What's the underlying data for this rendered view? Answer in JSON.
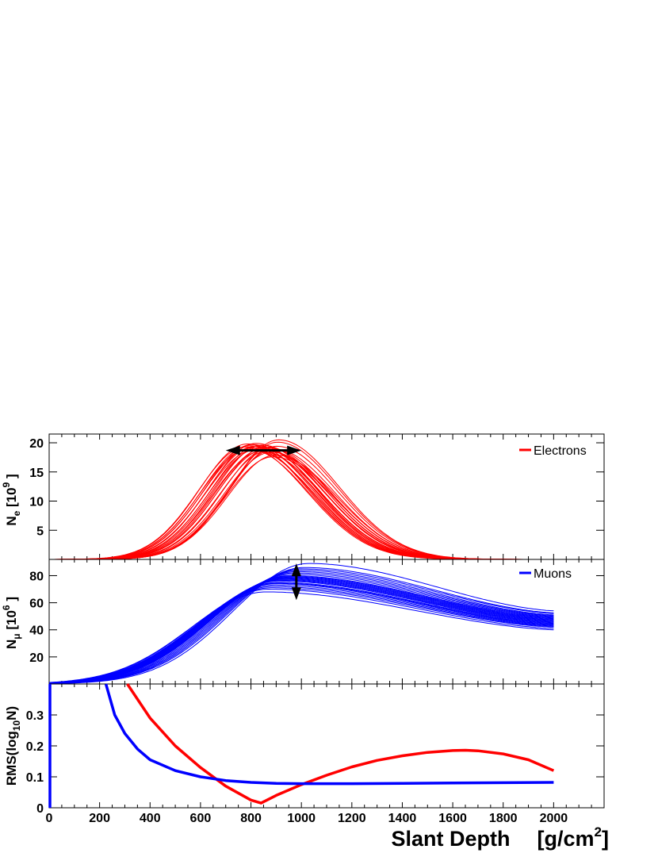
{
  "figure": {
    "xaxis": {
      "label": "Slant Depth",
      "unit_prefix": "[g/cm",
      "unit_sup": "2",
      "unit_suffix": "]",
      "range": [
        0,
        2200
      ],
      "ticks": [
        "0",
        "200",
        "400",
        "600",
        "800",
        "1000",
        "1200",
        "1400",
        "1600",
        "1800",
        "2000"
      ]
    }
  },
  "chart_data": [
    {
      "type": "line",
      "panel": "electrons",
      "ylabel": {
        "main": "N",
        "sub": "e",
        "unit": " [10",
        "sup": "9",
        "close": " ]"
      },
      "ylim": [
        0,
        21.5
      ],
      "yticks": [
        "5",
        "10",
        "15",
        "20"
      ],
      "legend": {
        "label": "Electrons",
        "color": "#ff0000",
        "position": "top-right"
      },
      "color": "#ff0000",
      "note": "shower family: about 26 red curves peaking between 780 and 910 g/cm2 at 17-20.5 x10^9",
      "series": [
        {
          "xmax": 780,
          "nmax": 19.3
        },
        {
          "xmax": 786,
          "nmax": 19.8
        },
        {
          "xmax": 790,
          "nmax": 18.9
        },
        {
          "xmax": 795,
          "nmax": 19.5
        },
        {
          "xmax": 800,
          "nmax": 19.1
        },
        {
          "xmax": 805,
          "nmax": 19.7
        },
        {
          "xmax": 810,
          "nmax": 18.7
        },
        {
          "xmax": 815,
          "nmax": 19.4
        },
        {
          "xmax": 820,
          "nmax": 19.9
        },
        {
          "xmax": 825,
          "nmax": 18.9
        },
        {
          "xmax": 830,
          "nmax": 19.5
        },
        {
          "xmax": 835,
          "nmax": 19.2
        },
        {
          "xmax": 840,
          "nmax": 18.5
        },
        {
          "xmax": 845,
          "nmax": 19.6
        },
        {
          "xmax": 850,
          "nmax": 19.0
        },
        {
          "xmax": 855,
          "nmax": 18.8
        },
        {
          "xmax": 860,
          "nmax": 19.3
        },
        {
          "xmax": 868,
          "nmax": 18.6
        },
        {
          "xmax": 875,
          "nmax": 19.1
        },
        {
          "xmax": 882,
          "nmax": 18.4
        },
        {
          "xmax": 888,
          "nmax": 17.6
        },
        {
          "xmax": 893,
          "nmax": 18.9
        },
        {
          "xmax": 898,
          "nmax": 17.9
        },
        {
          "xmax": 902,
          "nmax": 19.4
        },
        {
          "xmax": 906,
          "nmax": 20.1
        },
        {
          "xmax": 910,
          "nmax": 20.5
        }
      ],
      "arrow": {
        "x1": 700,
        "x2": 1000,
        "y": 18.7,
        "direction": "horizontal"
      }
    },
    {
      "type": "line",
      "panel": "muons",
      "ylabel": {
        "main": "N",
        "sub": "μ",
        "unit": " [10",
        "sup": "6",
        "close": " ]"
      },
      "ylim": [
        0,
        92
      ],
      "yticks": [
        "20",
        "40",
        "60",
        "80"
      ],
      "legend": {
        "label": "Muons",
        "color": "#0000ff",
        "position": "top-right"
      },
      "color": "#0000ff",
      "note": "about 26 blue curves peaking near 850-1050 g/cm2 at 68-89 x10^6, decaying to 40-54 at 2000",
      "series": [
        {
          "xmax": 860,
          "nmax": 68,
          "nend": 40
        },
        {
          "xmax": 870,
          "nmax": 70,
          "nend": 41
        },
        {
          "xmax": 880,
          "nmax": 71,
          "nend": 42
        },
        {
          "xmax": 885,
          "nmax": 72,
          "nend": 42.5
        },
        {
          "xmax": 890,
          "nmax": 73,
          "nend": 43
        },
        {
          "xmax": 895,
          "nmax": 74,
          "nend": 43.5
        },
        {
          "xmax": 900,
          "nmax": 74.5,
          "nend": 44
        },
        {
          "xmax": 905,
          "nmax": 75,
          "nend": 44.5
        },
        {
          "xmax": 910,
          "nmax": 76,
          "nend": 45
        },
        {
          "xmax": 915,
          "nmax": 76.5,
          "nend": 45.5
        },
        {
          "xmax": 920,
          "nmax": 77,
          "nend": 46
        },
        {
          "xmax": 925,
          "nmax": 77.5,
          "nend": 46.5
        },
        {
          "xmax": 930,
          "nmax": 78,
          "nend": 47
        },
        {
          "xmax": 935,
          "nmax": 78.5,
          "nend": 47.5
        },
        {
          "xmax": 940,
          "nmax": 79,
          "nend": 48
        },
        {
          "xmax": 945,
          "nmax": 79.5,
          "nend": 48.5
        },
        {
          "xmax": 950,
          "nmax": 80,
          "nend": 49
        },
        {
          "xmax": 960,
          "nmax": 81,
          "nend": 49.5
        },
        {
          "xmax": 970,
          "nmax": 82,
          "nend": 50
        },
        {
          "xmax": 980,
          "nmax": 83,
          "nend": 50.5
        },
        {
          "xmax": 990,
          "nmax": 84,
          "nend": 51
        },
        {
          "xmax": 1000,
          "nmax": 85,
          "nend": 52
        },
        {
          "xmax": 1010,
          "nmax": 86,
          "nend": 52.5
        },
        {
          "xmax": 1030,
          "nmax": 89,
          "nend": 54
        }
      ],
      "arrow": {
        "x": 980,
        "y1": 62,
        "y2": 89,
        "direction": "vertical"
      }
    },
    {
      "type": "line",
      "panel": "rms",
      "ylabel": {
        "main": "RMS(log",
        "sub": "10",
        "close": "N)"
      },
      "ylim": [
        0,
        0.4
      ],
      "yticks": [
        "0",
        "0.1",
        "0.2",
        "0.3"
      ],
      "series": [
        {
          "name": "Electrons",
          "color": "#ff0000",
          "x": [
            310,
            400,
            500,
            600,
            700,
            800,
            840,
            900,
            1000,
            1100,
            1200,
            1300,
            1400,
            1500,
            1600,
            1650,
            1700,
            1800,
            1900,
            2000
          ],
          "y": [
            0.4,
            0.29,
            0.2,
            0.13,
            0.07,
            0.025,
            0.015,
            0.04,
            0.075,
            0.105,
            0.132,
            0.153,
            0.168,
            0.179,
            0.185,
            0.186,
            0.184,
            0.174,
            0.155,
            0.12
          ]
        },
        {
          "name": "Muons",
          "color": "#0000ff",
          "x": [
            225,
            260,
            300,
            350,
            400,
            500,
            600,
            700,
            800,
            900,
            1000,
            1200,
            1400,
            1600,
            1800,
            2000
          ],
          "y": [
            0.4,
            0.3,
            0.24,
            0.19,
            0.155,
            0.12,
            0.1,
            0.088,
            0.082,
            0.079,
            0.078,
            0.078,
            0.079,
            0.08,
            0.081,
            0.082
          ]
        },
        {
          "name": "Muons-edge",
          "color": "#0000ff",
          "x": [
            3,
            3
          ],
          "y": [
            0,
            0.4
          ]
        }
      ]
    }
  ]
}
